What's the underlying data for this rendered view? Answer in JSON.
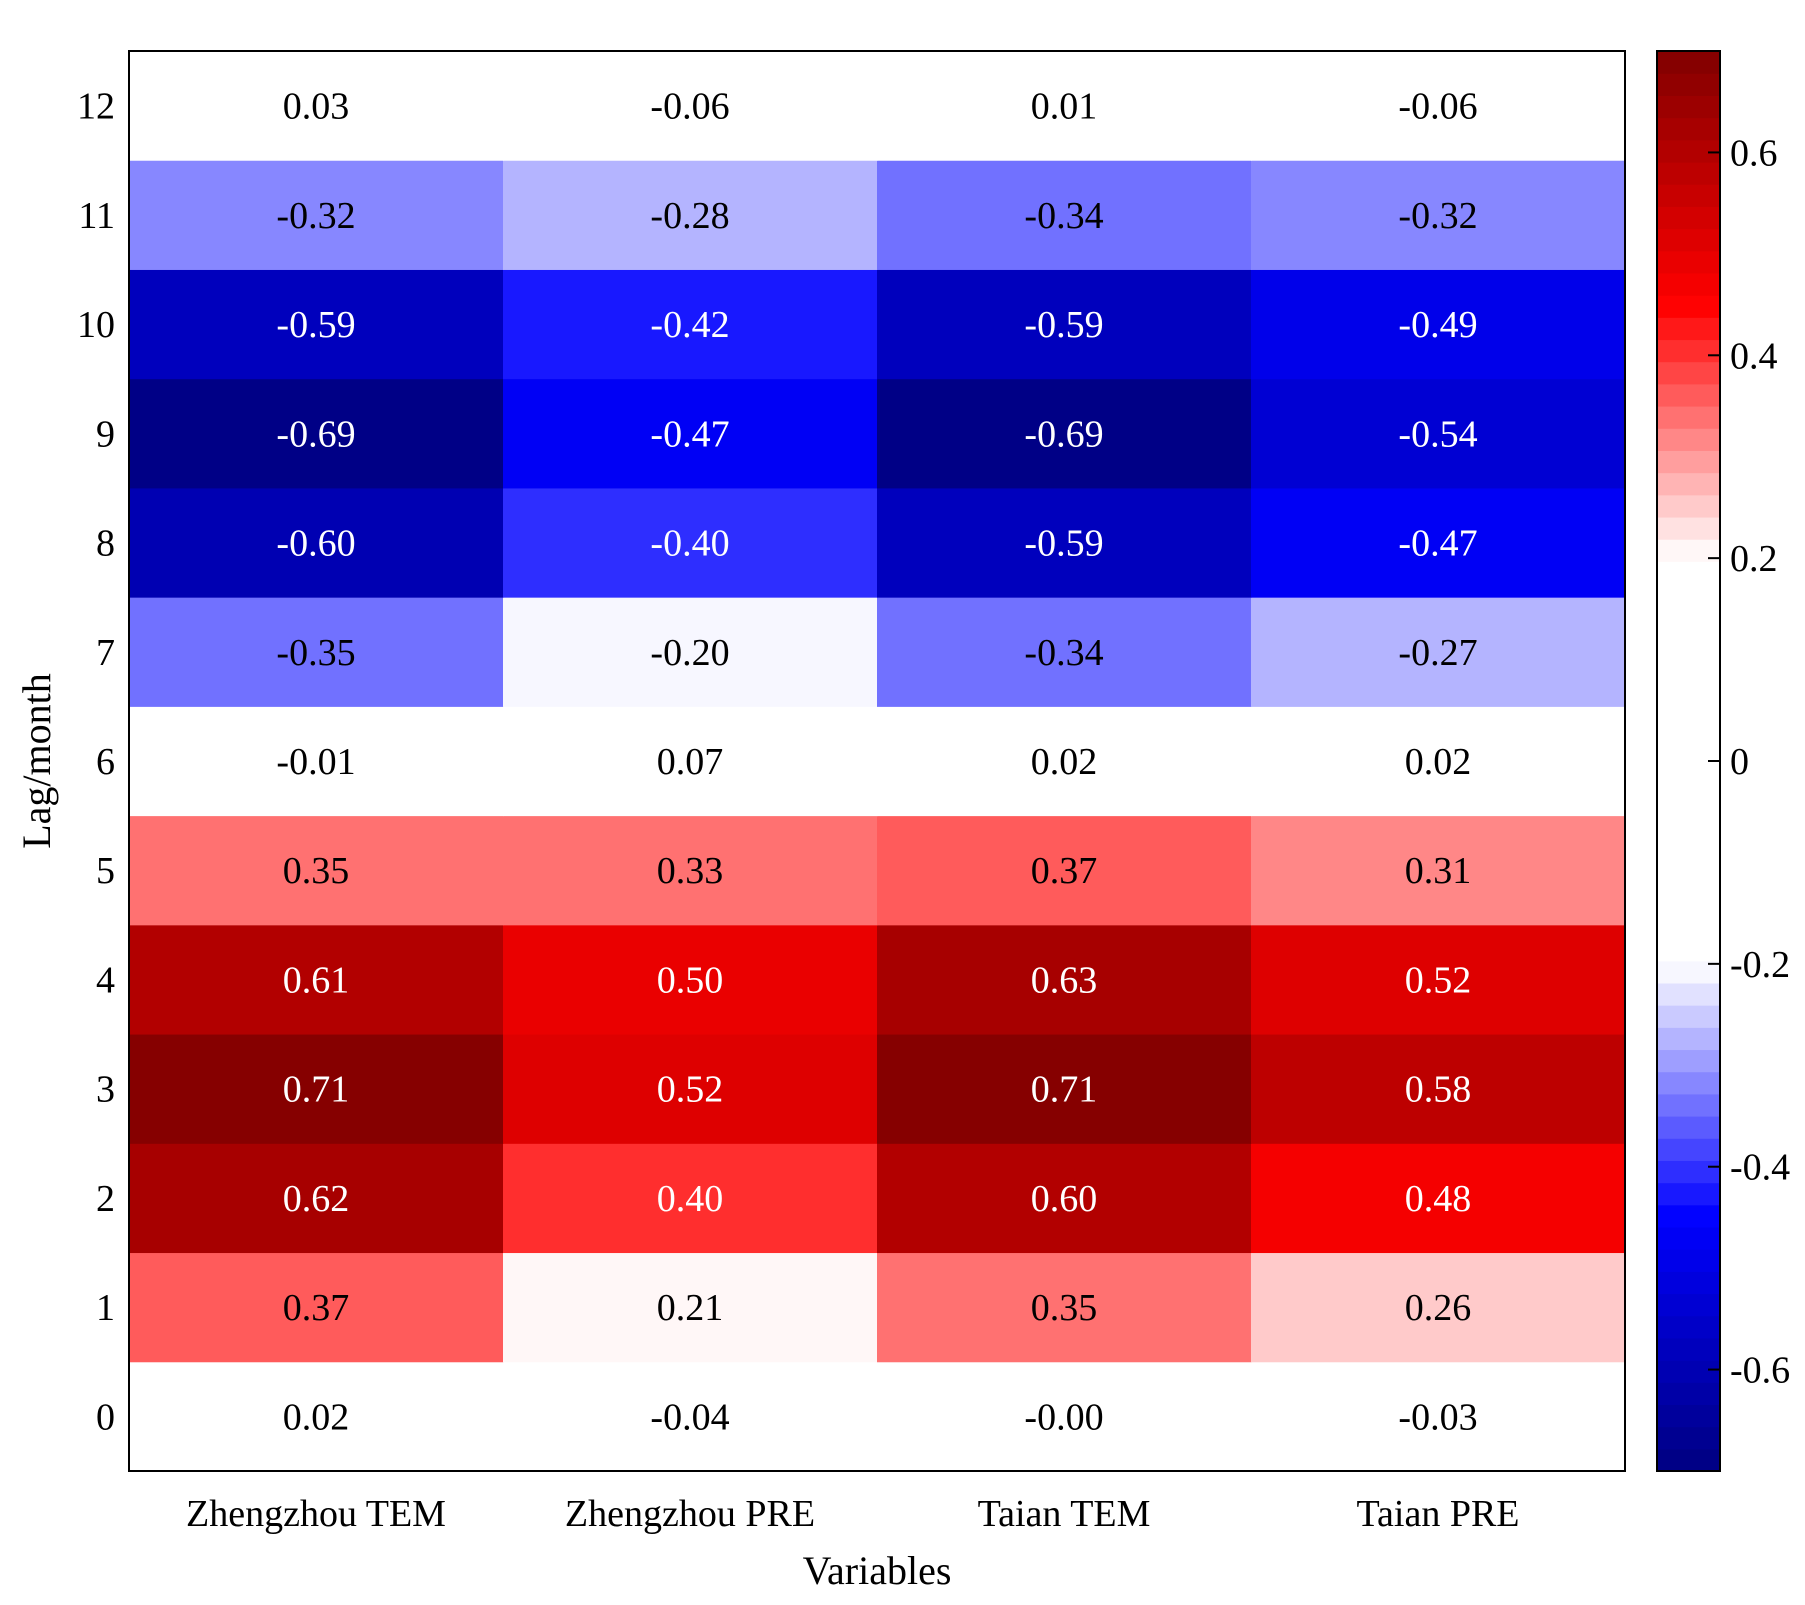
{
  "chart_data": {
    "type": "heatmap",
    "title": "",
    "xlabel": "Variables",
    "ylabel": "Lag/month",
    "x_categories": [
      "Zhengzhou TEM",
      "Zhengzhou PRE",
      "Taian TEM",
      "Taian PRE"
    ],
    "y_categories": [
      "0",
      "1",
      "2",
      "3",
      "4",
      "5",
      "6",
      "7",
      "8",
      "9",
      "10",
      "11",
      "12"
    ],
    "cell_labels": [
      [
        "0.02",
        "-0.04",
        "-0.00",
        "-0.03"
      ],
      [
        "0.37",
        "0.21",
        "0.35",
        "0.26"
      ],
      [
        "0.62",
        "0.40",
        "0.60",
        "0.48"
      ],
      [
        "0.71",
        "0.52",
        "0.71",
        "0.58"
      ],
      [
        "0.61",
        "0.50",
        "0.63",
        "0.52"
      ],
      [
        "0.35",
        "0.33",
        "0.37",
        "0.31"
      ],
      [
        "-0.01",
        "0.07",
        "0.02",
        "0.02"
      ],
      [
        "-0.35",
        "-0.20",
        "-0.34",
        "-0.27"
      ],
      [
        "-0.60",
        "-0.40",
        "-0.59",
        "-0.47"
      ],
      [
        "-0.69",
        "-0.47",
        "-0.69",
        "-0.54"
      ],
      [
        "-0.59",
        "-0.42",
        "-0.59",
        "-0.49"
      ],
      [
        "-0.32",
        "-0.28",
        "-0.34",
        "-0.32"
      ],
      [
        "0.03",
        "-0.06",
        "0.01",
        "-0.06"
      ]
    ],
    "values": [
      [
        0.02,
        -0.04,
        -0.0,
        -0.03
      ],
      [
        0.37,
        0.21,
        0.35,
        0.26
      ],
      [
        0.62,
        0.4,
        0.6,
        0.48
      ],
      [
        0.71,
        0.52,
        0.71,
        0.58
      ],
      [
        0.61,
        0.5,
        0.63,
        0.52
      ],
      [
        0.35,
        0.33,
        0.37,
        0.31
      ],
      [
        -0.01,
        0.07,
        0.02,
        0.02
      ],
      [
        -0.35,
        -0.2,
        -0.34,
        -0.27
      ],
      [
        -0.6,
        -0.4,
        -0.59,
        -0.47
      ],
      [
        -0.69,
        -0.47,
        -0.69,
        -0.54
      ],
      [
        -0.59,
        -0.42,
        -0.59,
        -0.49
      ],
      [
        -0.32,
        -0.28,
        -0.34,
        -0.32
      ],
      [
        0.03,
        -0.06,
        0.01,
        -0.06
      ]
    ],
    "colorbar": {
      "range": [
        -0.7,
        0.7
      ],
      "white_band": [
        -0.2,
        0.2
      ],
      "ticks": [
        0.6,
        0.4,
        0.2,
        0,
        -0.2,
        -0.4,
        -0.6
      ],
      "tick_labels": [
        "0.6",
        "0.4",
        "0.2",
        "0",
        "-0.2",
        "-0.4",
        "-0.6"
      ],
      "colors": {
        "darkest_red": "#800000",
        "red": "#ff0000",
        "white": "#ffffff",
        "blue": "#0000ff",
        "darkest_blue": "#000080"
      }
    },
    "text_color_dark": "#000000",
    "text_color_light": "#ffffff"
  }
}
